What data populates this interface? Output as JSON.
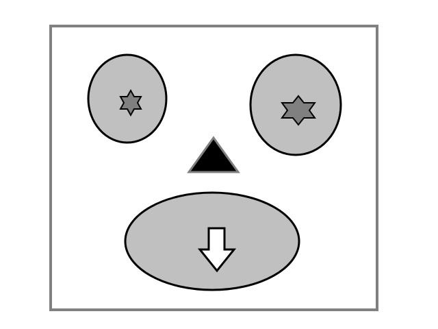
{
  "face": {
    "frame": {
      "stroke": "#808080",
      "fill": "#ffffff"
    },
    "left_eye": {
      "fill": "#c0c0c0",
      "stroke": "#000000",
      "pupil_shape": "star",
      "pupil_fill": "#808080"
    },
    "right_eye": {
      "fill": "#c0c0c0",
      "stroke": "#000000",
      "pupil_shape": "star",
      "pupil_fill": "#808080"
    },
    "nose": {
      "shape": "triangle",
      "fill": "#000000",
      "stroke": "#808080"
    },
    "mouth": {
      "fill": "#c0c0c0",
      "stroke": "#000000",
      "icon": "down-arrow-icon"
    }
  }
}
